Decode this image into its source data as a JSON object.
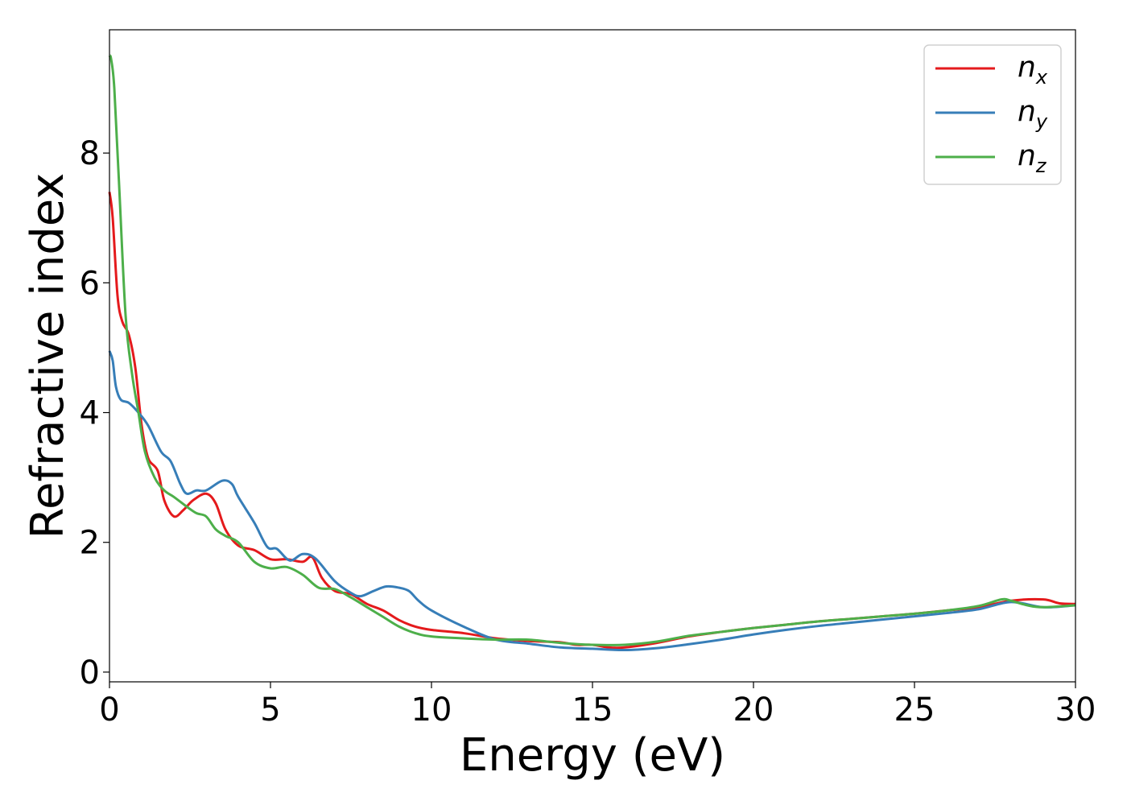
{
  "chart_data": {
    "type": "line",
    "xlabel": "Energy (eV)",
    "ylabel": "Refractive index",
    "xlim": [
      0,
      30
    ],
    "ylim": [
      -0.15,
      9.9
    ],
    "xticks": [
      0,
      5,
      10,
      15,
      20,
      25,
      30
    ],
    "yticks": [
      0,
      2,
      4,
      6,
      8
    ],
    "grid": false,
    "legend_position": "top-right",
    "series": [
      {
        "name": "n_x",
        "label_main": "n",
        "label_sub": "x",
        "color": "#e41a1c",
        "x": [
          0,
          0.1,
          0.25,
          0.4,
          0.6,
          0.8,
          1.0,
          1.2,
          1.5,
          1.7,
          2.0,
          2.3,
          2.6,
          3.0,
          3.3,
          3.6,
          4.0,
          4.5,
          5.0,
          5.5,
          6.0,
          6.3,
          6.6,
          7.0,
          7.5,
          8.0,
          8.5,
          9.0,
          9.5,
          10,
          11,
          12,
          13,
          14,
          14.5,
          15,
          15.5,
          16,
          17,
          18,
          19,
          20,
          21,
          22,
          23,
          24,
          25,
          26,
          27,
          28,
          29,
          29.5,
          30
        ],
        "y": [
          7.4,
          7.0,
          5.8,
          5.4,
          5.2,
          4.7,
          3.8,
          3.3,
          3.1,
          2.65,
          2.4,
          2.5,
          2.65,
          2.75,
          2.6,
          2.2,
          1.95,
          1.88,
          1.74,
          1.74,
          1.7,
          1.77,
          1.45,
          1.25,
          1.2,
          1.05,
          0.95,
          0.8,
          0.7,
          0.65,
          0.6,
          0.52,
          0.48,
          0.46,
          0.42,
          0.42,
          0.38,
          0.38,
          0.45,
          0.55,
          0.62,
          0.68,
          0.73,
          0.78,
          0.82,
          0.86,
          0.9,
          0.95,
          1.0,
          1.1,
          1.12,
          1.06,
          1.05
        ]
      },
      {
        "name": "n_y",
        "label_main": "n",
        "label_sub": "y",
        "color": "#377eb8",
        "x": [
          0,
          0.1,
          0.2,
          0.35,
          0.6,
          0.9,
          1.2,
          1.6,
          1.9,
          2.2,
          2.4,
          2.7,
          3.0,
          3.5,
          3.8,
          4.0,
          4.5,
          4.9,
          5.2,
          5.6,
          6.0,
          6.4,
          7.0,
          7.5,
          7.8,
          8.2,
          8.6,
          9.0,
          9.3,
          9.6,
          10,
          11,
          12,
          13,
          14,
          15,
          16,
          17,
          18,
          19,
          20,
          21,
          22,
          23,
          24,
          25,
          26,
          27,
          28,
          29,
          30
        ],
        "y": [
          4.95,
          4.8,
          4.4,
          4.2,
          4.15,
          4.0,
          3.8,
          3.4,
          3.25,
          2.9,
          2.75,
          2.8,
          2.8,
          2.95,
          2.9,
          2.7,
          2.3,
          1.93,
          1.9,
          1.72,
          1.82,
          1.75,
          1.4,
          1.22,
          1.17,
          1.25,
          1.32,
          1.3,
          1.25,
          1.1,
          0.95,
          0.7,
          0.5,
          0.44,
          0.38,
          0.36,
          0.34,
          0.37,
          0.43,
          0.5,
          0.58,
          0.65,
          0.71,
          0.76,
          0.81,
          0.86,
          0.91,
          0.97,
          1.08,
          1.0,
          1.03
        ]
      },
      {
        "name": "n_z",
        "label_main": "n",
        "label_sub": "z",
        "color": "#4daf4a",
        "x": [
          0,
          0.05,
          0.15,
          0.3,
          0.5,
          0.7,
          0.9,
          1.1,
          1.4,
          1.7,
          2.0,
          2.4,
          2.7,
          3.0,
          3.3,
          3.6,
          4.0,
          4.5,
          5.0,
          5.5,
          6.0,
          6.5,
          7.0,
          7.5,
          8.0,
          8.5,
          9.0,
          9.5,
          10,
          11,
          12,
          13,
          14,
          15,
          16,
          17,
          18,
          19,
          20,
          21,
          22,
          23,
          24,
          25,
          26,
          27,
          27.7,
          28,
          28.5,
          29,
          30
        ],
        "y": [
          9.5,
          9.45,
          9.0,
          7.5,
          5.5,
          4.6,
          4.0,
          3.4,
          3.0,
          2.8,
          2.7,
          2.55,
          2.45,
          2.4,
          2.2,
          2.1,
          2.0,
          1.7,
          1.6,
          1.62,
          1.5,
          1.3,
          1.28,
          1.15,
          1.0,
          0.85,
          0.7,
          0.6,
          0.55,
          0.52,
          0.5,
          0.5,
          0.45,
          0.42,
          0.42,
          0.47,
          0.56,
          0.62,
          0.68,
          0.73,
          0.78,
          0.82,
          0.86,
          0.9,
          0.95,
          1.02,
          1.12,
          1.1,
          1.03,
          1.0,
          1.03
        ]
      }
    ]
  }
}
